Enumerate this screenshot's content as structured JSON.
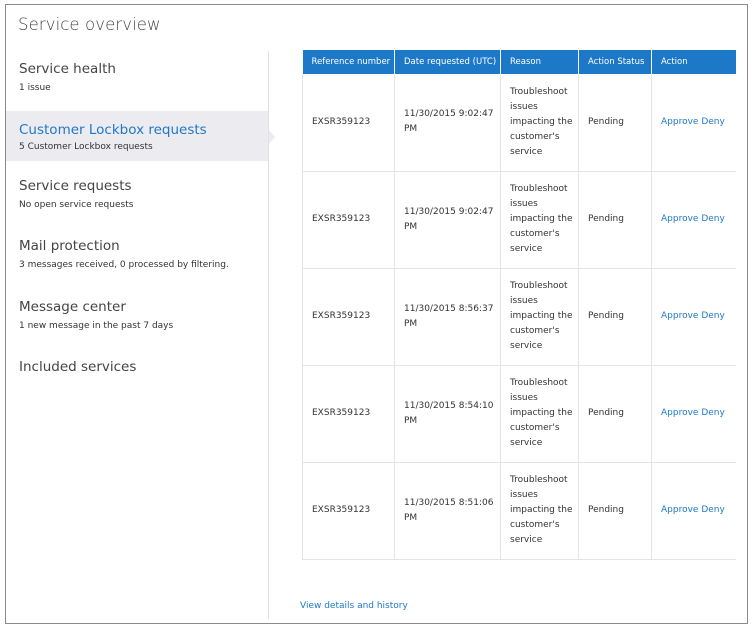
{
  "page": {
    "title": "Service overview"
  },
  "sidebar": {
    "items": [
      {
        "label": "Service health",
        "sub": "1 issue"
      },
      {
        "label": "Customer Lockbox requests",
        "sub": "5 Customer Lockbox requests"
      },
      {
        "label": "Service requests",
        "sub": "No open service requests"
      },
      {
        "label": "Mail protection",
        "sub": "3 messages received, 0 processed by filtering."
      },
      {
        "label": "Message center",
        "sub": "1 new message in the past 7 days"
      },
      {
        "label": "Included services",
        "sub": ""
      }
    ]
  },
  "table": {
    "headers": [
      "Reference number",
      "Date requested (UTC)",
      "Reason",
      "Action Status",
      "Action"
    ],
    "rows": [
      {
        "ref": "EXSR359123",
        "date": "11/30/2015 9:02:47 PM",
        "reason": "Troubleshoot issues impacting the customer's service",
        "status": "Pending",
        "approve": "Approve",
        "deny": "Deny"
      },
      {
        "ref": "EXSR359123",
        "date": "11/30/2015 9:02:47 PM",
        "reason": "Troubleshoot issues impacting the customer's service",
        "status": "Pending",
        "approve": "Approve",
        "deny": "Deny"
      },
      {
        "ref": "EXSR359123",
        "date": "11/30/2015 8:56:37 PM",
        "reason": "Troubleshoot issues impacting the customer's service",
        "status": "Pending",
        "approve": "Approve",
        "deny": "Deny"
      },
      {
        "ref": "EXSR359123",
        "date": "11/30/2015 8:54:10 PM",
        "reason": "Troubleshoot issues impacting the customer's service",
        "status": "Pending",
        "approve": "Approve",
        "deny": "Deny"
      },
      {
        "ref": "EXSR359123",
        "date": "11/30/2015 8:51:06 PM",
        "reason": "Troubleshoot issues impacting the customer's service",
        "status": "Pending",
        "approve": "Approve",
        "deny": "Deny"
      }
    ]
  },
  "footer": {
    "details_link": "View details and history"
  },
  "colors": {
    "accent": "#1e78c8",
    "active_bg": "#ecebef"
  }
}
